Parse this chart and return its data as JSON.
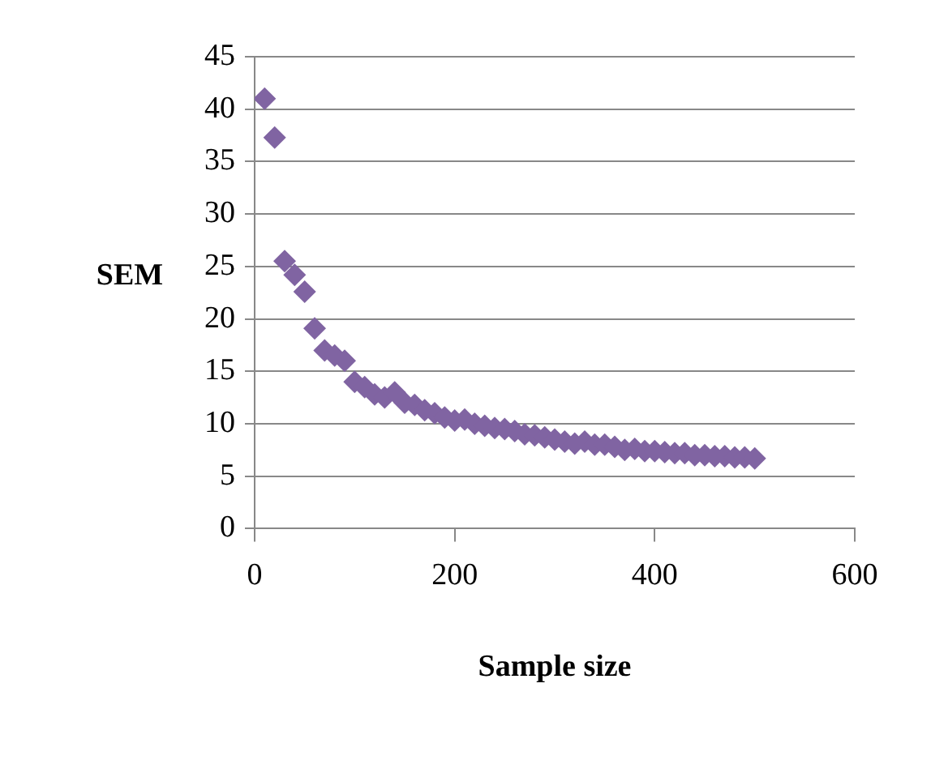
{
  "chart_data": {
    "type": "scatter",
    "xlabel": "Sample size",
    "ylabel": "SEM",
    "marker": "diamond",
    "grid": "y",
    "legend": false,
    "xlim": [
      0,
      600
    ],
    "xticks": [
      0,
      200,
      400,
      600
    ],
    "ylim": [
      0,
      45
    ],
    "yticks": [
      0,
      5,
      10,
      15,
      20,
      25,
      30,
      35,
      40,
      45
    ],
    "series": [
      {
        "color": "#8064a2",
        "x": [
          10,
          20,
          30,
          40,
          50,
          60,
          70,
          80,
          90,
          100,
          110,
          120,
          130,
          140,
          150,
          160,
          170,
          180,
          190,
          200,
          210,
          220,
          230,
          240,
          250,
          260,
          270,
          280,
          290,
          300,
          310,
          320,
          330,
          340,
          350,
          360,
          370,
          380,
          390,
          400,
          410,
          420,
          430,
          440,
          450,
          460,
          470,
          480,
          490,
          500
        ],
        "values": [
          41,
          37.3,
          25.5,
          24.2,
          22.6,
          19.1,
          17,
          16.5,
          16,
          14,
          13.5,
          12.8,
          12.5,
          13,
          12,
          11.8,
          11.3,
          11,
          10.6,
          10.3,
          10.4,
          10,
          9.8,
          9.6,
          9.5,
          9.3,
          9,
          8.9,
          8.7,
          8.5,
          8.3,
          8.1,
          8.3,
          8,
          8,
          7.8,
          7.5,
          7.6,
          7.4,
          7.4,
          7.3,
          7.2,
          7.2,
          7,
          7,
          6.9,
          6.9,
          6.8,
          6.8,
          6.7
        ]
      }
    ]
  }
}
